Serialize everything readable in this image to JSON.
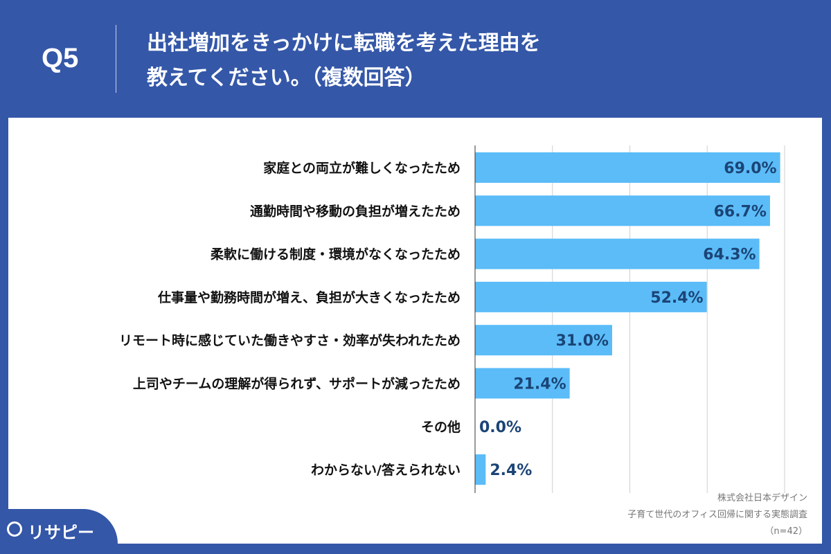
{
  "header": {
    "question_no": "Q5",
    "title_line1": "出社増加をきっかけに転職を考えた理由を",
    "title_line2": "教えてください。（複数回答）"
  },
  "source": {
    "company": "株式会社日本デザイン",
    "survey": "子育て世代のオフィス回帰に関する実態調査",
    "n": "（n=42）"
  },
  "logo": {
    "text": "リサピー",
    "icon": "map-pin-icon"
  },
  "colors": {
    "background": "#3457a8",
    "bar": "#5bbcf8",
    "value_label": "#1b4476"
  },
  "chart_data": {
    "type": "bar",
    "orientation": "horizontal",
    "categories": [
      "家庭との両立が難しくなったため",
      "通勤時間や移動の負担が増えたため",
      "柔軟に働ける制度・環境がなくなったため",
      "仕事量や勤務時間が増え、負担が大きくなったため",
      "リモート時に感じていた働きやすさ・効率が失われたため",
      "上司やチームの理解が得られず、サポートが減ったため",
      "その他",
      "わからない/答えられない"
    ],
    "values": [
      69.0,
      66.7,
      64.3,
      52.4,
      31.0,
      21.4,
      0.0,
      2.4
    ],
    "value_labels": [
      "69.0%",
      "66.7%",
      "64.3%",
      "52.4%",
      "31.0%",
      "21.4%",
      "0.0%",
      "2.4%"
    ],
    "xlim": [
      0,
      70
    ],
    "grid": true
  }
}
